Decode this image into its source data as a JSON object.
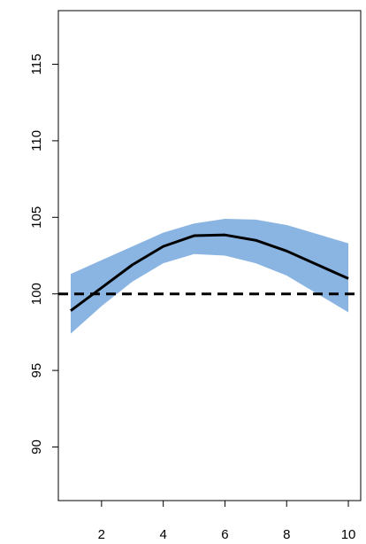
{
  "chart_data": {
    "type": "line",
    "title": "",
    "xlabel": "",
    "ylabel": "",
    "xlim": [
      0.6,
      10.4
    ],
    "ylim": [
      86.5,
      118.5
    ],
    "x_ticks": [
      "2",
      "4",
      "6",
      "8",
      "10"
    ],
    "y_ticks": [
      "90",
      "95",
      "100",
      "105",
      "110",
      "115"
    ],
    "grid": false,
    "legend": "none",
    "reference_line": {
      "y": 100,
      "style": "dashed",
      "color": "#000000"
    },
    "series": [
      {
        "type": "line",
        "color": "#000000",
        "x": [
          1,
          2,
          3,
          4,
          5,
          6,
          7,
          8,
          9,
          10
        ],
        "y": [
          98.9,
          100.4,
          101.9,
          103.1,
          103.8,
          103.85,
          103.5,
          102.8,
          101.9,
          101.0
        ]
      }
    ],
    "band": {
      "color": "#8ab4e2",
      "x": [
        1,
        2,
        3,
        4,
        5,
        6,
        7,
        8,
        9,
        10
      ],
      "lower": [
        97.4,
        99.2,
        100.8,
        102.0,
        102.6,
        102.5,
        102.0,
        101.2,
        100.0,
        98.8
      ],
      "upper": [
        101.3,
        102.2,
        103.1,
        104.0,
        104.6,
        104.9,
        104.85,
        104.5,
        103.9,
        103.3
      ]
    }
  }
}
